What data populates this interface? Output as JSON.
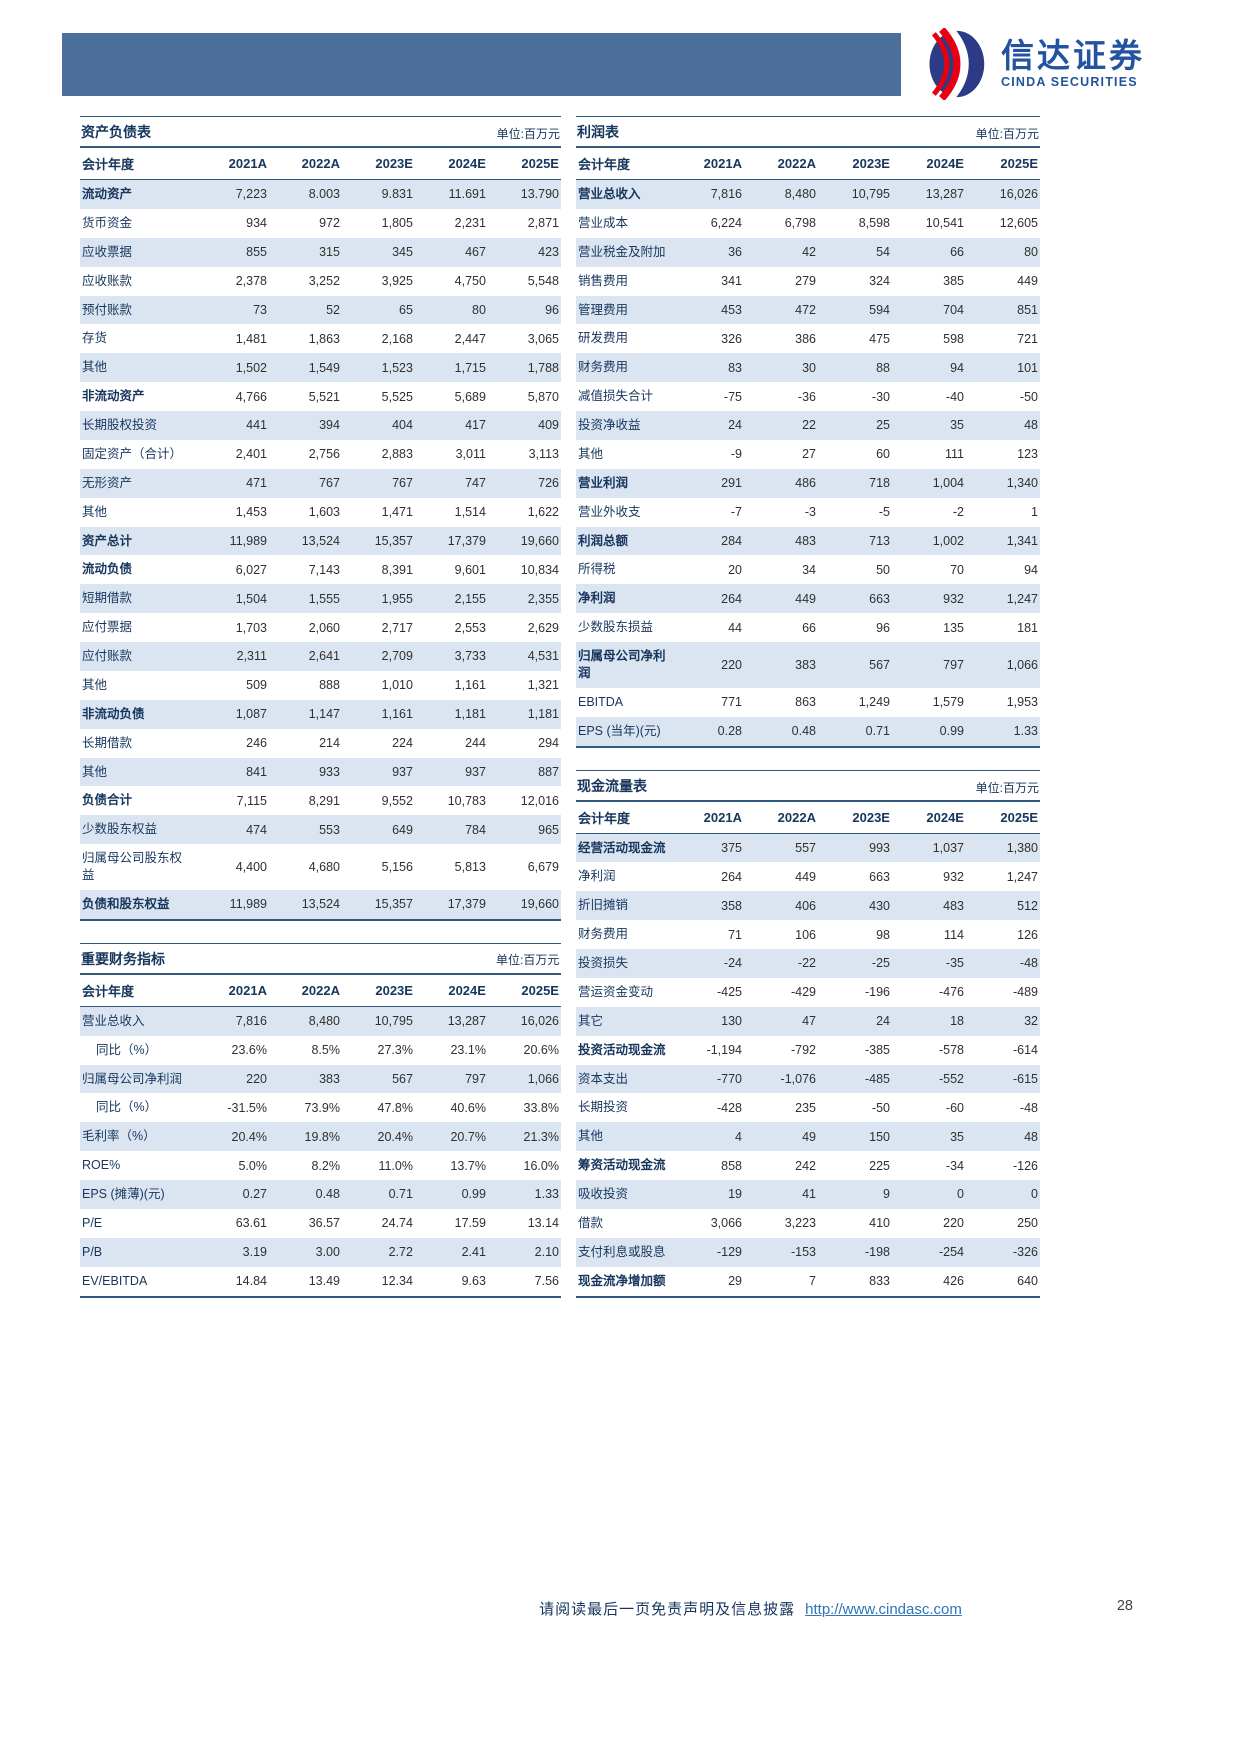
{
  "logo": {
    "cn": "信达证券",
    "en": "CINDA SECURITIES"
  },
  "tables": {
    "balance_sheet": {
      "title": "资产负债表",
      "unit": "单位:百万元",
      "header": [
        "会计年度",
        "2021A",
        "2022A",
        "2023E",
        "2024E",
        "2025E"
      ],
      "rows": [
        {
          "label": "流动资产",
          "bold": true,
          "values": [
            "7,223",
            "8.003",
            "9.831",
            "11.691",
            "13.790"
          ]
        },
        {
          "label": "货币资金",
          "values": [
            "934",
            "972",
            "1,805",
            "2,231",
            "2,871"
          ]
        },
        {
          "label": "应收票据",
          "values": [
            "855",
            "315",
            "345",
            "467",
            "423"
          ]
        },
        {
          "label": "应收账款",
          "values": [
            "2,378",
            "3,252",
            "3,925",
            "4,750",
            "5,548"
          ]
        },
        {
          "label": "预付账款",
          "values": [
            "73",
            "52",
            "65",
            "80",
            "96"
          ]
        },
        {
          "label": "存货",
          "values": [
            "1,481",
            "1,863",
            "2,168",
            "2,447",
            "3,065"
          ]
        },
        {
          "label": "其他",
          "values": [
            "1,502",
            "1,549",
            "1,523",
            "1,715",
            "1,788"
          ]
        },
        {
          "label": "非流动资产",
          "bold": true,
          "values": [
            "4,766",
            "5,521",
            "5,525",
            "5,689",
            "5,870"
          ]
        },
        {
          "label": "长期股权投资",
          "values": [
            "441",
            "394",
            "404",
            "417",
            "409"
          ]
        },
        {
          "label": "固定资产（合计）",
          "values": [
            "2,401",
            "2,756",
            "2,883",
            "3,011",
            "3,113"
          ]
        },
        {
          "label": "无形资产",
          "values": [
            "471",
            "767",
            "767",
            "747",
            "726"
          ]
        },
        {
          "label": "其他",
          "values": [
            "1,453",
            "1,603",
            "1,471",
            "1,514",
            "1,622"
          ]
        },
        {
          "label": "资产总计",
          "bold": true,
          "values": [
            "11,989",
            "13,524",
            "15,357",
            "17,379",
            "19,660"
          ]
        },
        {
          "label": "流动负债",
          "bold": true,
          "values": [
            "6,027",
            "7,143",
            "8,391",
            "9,601",
            "10,834"
          ]
        },
        {
          "label": "短期借款",
          "values": [
            "1,504",
            "1,555",
            "1,955",
            "2,155",
            "2,355"
          ]
        },
        {
          "label": "应付票据",
          "values": [
            "1,703",
            "2,060",
            "2,717",
            "2,553",
            "2,629"
          ]
        },
        {
          "label": "应付账款",
          "values": [
            "2,311",
            "2,641",
            "2,709",
            "3,733",
            "4,531"
          ]
        },
        {
          "label": "其他",
          "values": [
            "509",
            "888",
            "1,010",
            "1,161",
            "1,321"
          ]
        },
        {
          "label": "非流动负债",
          "bold": true,
          "values": [
            "1,087",
            "1,147",
            "1,161",
            "1,181",
            "1,181"
          ]
        },
        {
          "label": "长期借款",
          "values": [
            "246",
            "214",
            "224",
            "244",
            "294"
          ]
        },
        {
          "label": "其他",
          "values": [
            "841",
            "933",
            "937",
            "937",
            "887"
          ]
        },
        {
          "label": "负债合计",
          "bold": true,
          "values": [
            "7,115",
            "8,291",
            "9,552",
            "10,783",
            "12,016"
          ]
        },
        {
          "label": "少数股东权益",
          "values": [
            "474",
            "553",
            "649",
            "784",
            "965"
          ]
        },
        {
          "label": "归属母公司股东权益",
          "values": [
            "4,400",
            "4,680",
            "5,156",
            "5,813",
            "6,679"
          ]
        },
        {
          "label": "负债和股东权益",
          "bold": true,
          "values": [
            "11,989",
            "13,524",
            "15,357",
            "17,379",
            "19,660"
          ]
        }
      ]
    },
    "income_statement": {
      "title": "利润表",
      "unit": "单位:百万元",
      "header": [
        "会计年度",
        "2021A",
        "2022A",
        "2023E",
        "2024E",
        "2025E"
      ],
      "rows": [
        {
          "label": "营业总收入",
          "bold": true,
          "values": [
            "7,816",
            "8,480",
            "10,795",
            "13,287",
            "16,026"
          ]
        },
        {
          "label": "营业成本",
          "values": [
            "6,224",
            "6,798",
            "8,598",
            "10,541",
            "12,605"
          ]
        },
        {
          "label": "营业税金及附加",
          "values": [
            "36",
            "42",
            "54",
            "66",
            "80"
          ]
        },
        {
          "label": "销售费用",
          "values": [
            "341",
            "279",
            "324",
            "385",
            "449"
          ]
        },
        {
          "label": "管理费用",
          "values": [
            "453",
            "472",
            "594",
            "704",
            "851"
          ]
        },
        {
          "label": "研发费用",
          "values": [
            "326",
            "386",
            "475",
            "598",
            "721"
          ]
        },
        {
          "label": "财务费用",
          "values": [
            "83",
            "30",
            "88",
            "94",
            "101"
          ]
        },
        {
          "label": "减值损失合计",
          "values": [
            "-75",
            "-36",
            "-30",
            "-40",
            "-50"
          ]
        },
        {
          "label": "投资净收益",
          "values": [
            "24",
            "22",
            "25",
            "35",
            "48"
          ]
        },
        {
          "label": "其他",
          "values": [
            "-9",
            "27",
            "60",
            "111",
            "123"
          ]
        },
        {
          "label": "营业利润",
          "bold": true,
          "values": [
            "291",
            "486",
            "718",
            "1,004",
            "1,340"
          ]
        },
        {
          "label": "营业外收支",
          "values": [
            "-7",
            "-3",
            "-5",
            "-2",
            "1"
          ]
        },
        {
          "label": "利润总额",
          "bold": true,
          "values": [
            "284",
            "483",
            "713",
            "1,002",
            "1,341"
          ]
        },
        {
          "label": "所得税",
          "values": [
            "20",
            "34",
            "50",
            "70",
            "94"
          ]
        },
        {
          "label": "净利润",
          "bold": true,
          "values": [
            "264",
            "449",
            "663",
            "932",
            "1,247"
          ]
        },
        {
          "label": "少数股东损益",
          "values": [
            "44",
            "66",
            "96",
            "135",
            "181"
          ]
        },
        {
          "label": "归属母公司净利润",
          "bold": true,
          "values": [
            "220",
            "383",
            "567",
            "797",
            "1,066"
          ]
        },
        {
          "label": "EBITDA",
          "values": [
            "771",
            "863",
            "1,249",
            "1,579",
            "1,953"
          ]
        },
        {
          "label": "EPS (当年)(元)",
          "values": [
            "0.28",
            "0.48",
            "0.71",
            "0.99",
            "1.33"
          ]
        }
      ]
    },
    "key_metrics": {
      "title": "重要财务指标",
      "unit": "单位:百万元",
      "header": [
        "会计年度",
        "2021A",
        "2022A",
        "2023E",
        "2024E",
        "2025E"
      ],
      "rows": [
        {
          "label": "营业总收入",
          "values": [
            "7,816",
            "8,480",
            "10,795",
            "13,287",
            "16,026"
          ]
        },
        {
          "label": "同比（%）",
          "indent": true,
          "values": [
            "23.6%",
            "8.5%",
            "27.3%",
            "23.1%",
            "20.6%"
          ]
        },
        {
          "label": "归属母公司净利润",
          "values": [
            "220",
            "383",
            "567",
            "797",
            "1,066"
          ]
        },
        {
          "label": "同比（%）",
          "indent": true,
          "values": [
            "-31.5%",
            "73.9%",
            "47.8%",
            "40.6%",
            "33.8%"
          ]
        },
        {
          "label": "毛利率（%）",
          "values": [
            "20.4%",
            "19.8%",
            "20.4%",
            "20.7%",
            "21.3%"
          ]
        },
        {
          "label": "ROE%",
          "values": [
            "5.0%",
            "8.2%",
            "11.0%",
            "13.7%",
            "16.0%"
          ]
        },
        {
          "label": "EPS (摊薄)(元)",
          "values": [
            "0.27",
            "0.48",
            "0.71",
            "0.99",
            "1.33"
          ]
        },
        {
          "label": "P/E",
          "values": [
            "63.61",
            "36.57",
            "24.74",
            "17.59",
            "13.14"
          ]
        },
        {
          "label": "P/B",
          "values": [
            "3.19",
            "3.00",
            "2.72",
            "2.41",
            "2.10"
          ]
        },
        {
          "label": "EV/EBITDA",
          "values": [
            "14.84",
            "13.49",
            "12.34",
            "9.63",
            "7.56"
          ]
        }
      ]
    },
    "cash_flow": {
      "title": "现金流量表",
      "unit": "单位:百万元",
      "header": [
        "会计年度",
        "2021A",
        "2022A",
        "2023E",
        "2024E",
        "2025E"
      ],
      "rows": [
        {
          "label": "经营活动现金流",
          "bold": true,
          "values": [
            "375",
            "557",
            "993",
            "1,037",
            "1,380"
          ]
        },
        {
          "label": "净利润",
          "values": [
            "264",
            "449",
            "663",
            "932",
            "1,247"
          ]
        },
        {
          "label": "折旧摊销",
          "values": [
            "358",
            "406",
            "430",
            "483",
            "512"
          ]
        },
        {
          "label": "财务费用",
          "values": [
            "71",
            "106",
            "98",
            "114",
            "126"
          ]
        },
        {
          "label": "投资损失",
          "values": [
            "-24",
            "-22",
            "-25",
            "-35",
            "-48"
          ]
        },
        {
          "label": "营运资金变动",
          "values": [
            "-425",
            "-429",
            "-196",
            "-476",
            "-489"
          ]
        },
        {
          "label": "其它",
          "values": [
            "130",
            "47",
            "24",
            "18",
            "32"
          ]
        },
        {
          "label": "投资活动现金流",
          "bold": true,
          "values": [
            "-1,194",
            "-792",
            "-385",
            "-578",
            "-614"
          ]
        },
        {
          "label": "资本支出",
          "values": [
            "-770",
            "-1,076",
            "-485",
            "-552",
            "-615"
          ]
        },
        {
          "label": "长期投资",
          "values": [
            "-428",
            "235",
            "-50",
            "-60",
            "-48"
          ]
        },
        {
          "label": "其他",
          "values": [
            "4",
            "49",
            "150",
            "35",
            "48"
          ]
        },
        {
          "label": "筹资活动现金流",
          "bold": true,
          "values": [
            "858",
            "242",
            "225",
            "-34",
            "-126"
          ]
        },
        {
          "label": "吸收投资",
          "values": [
            "19",
            "41",
            "9",
            "0",
            "0"
          ]
        },
        {
          "label": "借款",
          "values": [
            "3,066",
            "3,223",
            "410",
            "220",
            "250"
          ]
        },
        {
          "label": "支付利息或股息",
          "values": [
            "-129",
            "-153",
            "-198",
            "-254",
            "-326"
          ]
        },
        {
          "label": "现金流净增加额",
          "bold": true,
          "values": [
            "29",
            "7",
            "833",
            "426",
            "640"
          ]
        }
      ]
    }
  },
  "footer": {
    "disclaimer": "请阅读最后一页免责声明及信息披露",
    "url": "http://www.cindasc.com",
    "page": "28"
  }
}
